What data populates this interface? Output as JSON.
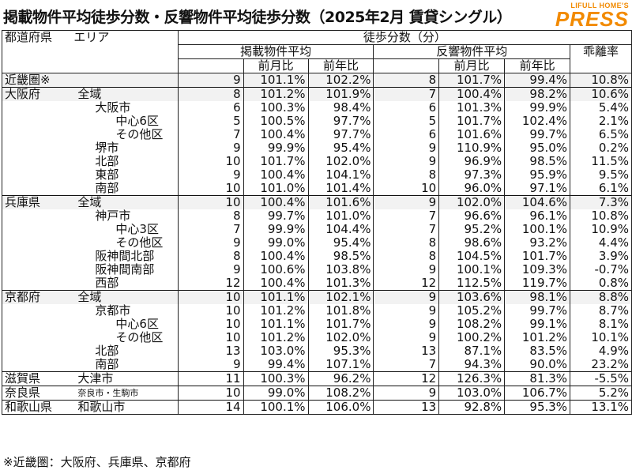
{
  "title": "掲載物件平均徒歩分数・反響物件平均徒歩分数（2025年2月 賃貸シングル）",
  "logo": {
    "top": "LIFULL HOME'S",
    "main": "PRESS",
    "color": "#f28a00"
  },
  "headers": {
    "pref": "都道府県",
    "area": "エリア",
    "walk_minutes": "徒歩分数（分）",
    "listed_avg": "掲載物件平均",
    "response_avg": "反響物件平均",
    "mom": "前月比",
    "yoy": "前年比",
    "divergence": "乖離率"
  },
  "rows": [
    {
      "pref": "近畿圏※",
      "area": "",
      "l": "9",
      "lm": "101.1%",
      "ly": "102.2%",
      "r": "8",
      "rm": "101.7%",
      "ry": "99.4%",
      "d": "10.8%"
    },
    {
      "pref": "大阪府",
      "area": "全域",
      "l": "8",
      "lm": "101.2%",
      "ly": "101.9%",
      "r": "7",
      "rm": "100.4%",
      "ry": "98.2%",
      "d": "10.6%"
    },
    {
      "pref": "",
      "area": "大阪市",
      "l": "6",
      "lm": "100.3%",
      "ly": "98.4%",
      "r": "6",
      "rm": "101.3%",
      "ry": "99.9%",
      "d": "5.4%"
    },
    {
      "pref": "",
      "area": "中心6区",
      "l": "5",
      "lm": "100.5%",
      "ly": "97.7%",
      "r": "5",
      "rm": "101.7%",
      "ry": "102.4%",
      "d": "2.1%"
    },
    {
      "pref": "",
      "area": "その他区",
      "l": "7",
      "lm": "100.4%",
      "ly": "97.7%",
      "r": "6",
      "rm": "101.6%",
      "ry": "99.7%",
      "d": "6.5%"
    },
    {
      "pref": "",
      "area": "堺市",
      "l": "9",
      "lm": "99.9%",
      "ly": "95.4%",
      "r": "9",
      "rm": "110.9%",
      "ry": "95.0%",
      "d": "0.2%"
    },
    {
      "pref": "",
      "area": "北部",
      "l": "10",
      "lm": "101.7%",
      "ly": "102.0%",
      "r": "9",
      "rm": "96.9%",
      "ry": "98.5%",
      "d": "11.5%"
    },
    {
      "pref": "",
      "area": "東部",
      "l": "9",
      "lm": "100.4%",
      "ly": "104.1%",
      "r": "8",
      "rm": "97.3%",
      "ry": "95.9%",
      "d": "9.5%"
    },
    {
      "pref": "",
      "area": "南部",
      "l": "10",
      "lm": "101.0%",
      "ly": "101.4%",
      "r": "10",
      "rm": "96.0%",
      "ry": "97.1%",
      "d": "6.1%"
    },
    {
      "pref": "兵庫県",
      "area": "全域",
      "l": "10",
      "lm": "100.4%",
      "ly": "101.6%",
      "r": "9",
      "rm": "102.0%",
      "ry": "104.6%",
      "d": "7.3%"
    },
    {
      "pref": "",
      "area": "神戸市",
      "l": "8",
      "lm": "99.7%",
      "ly": "101.0%",
      "r": "7",
      "rm": "96.6%",
      "ry": "96.1%",
      "d": "10.8%"
    },
    {
      "pref": "",
      "area": "中心3区",
      "l": "7",
      "lm": "99.9%",
      "ly": "104.4%",
      "r": "7",
      "rm": "95.2%",
      "ry": "100.1%",
      "d": "10.9%"
    },
    {
      "pref": "",
      "area": "その他区",
      "l": "9",
      "lm": "99.0%",
      "ly": "95.4%",
      "r": "8",
      "rm": "98.6%",
      "ry": "93.2%",
      "d": "4.4%"
    },
    {
      "pref": "",
      "area": "阪神間北部",
      "l": "8",
      "lm": "100.4%",
      "ly": "98.5%",
      "r": "8",
      "rm": "104.5%",
      "ry": "101.7%",
      "d": "3.9%"
    },
    {
      "pref": "",
      "area": "阪神間南部",
      "l": "9",
      "lm": "100.6%",
      "ly": "103.8%",
      "r": "9",
      "rm": "100.1%",
      "ry": "109.3%",
      "d": "-0.7%"
    },
    {
      "pref": "",
      "area": "西部",
      "l": "12",
      "lm": "100.4%",
      "ly": "101.3%",
      "r": "12",
      "rm": "112.5%",
      "ry": "119.7%",
      "d": "0.8%"
    },
    {
      "pref": "京都府",
      "area": "全域",
      "l": "10",
      "lm": "101.1%",
      "ly": "102.1%",
      "r": "9",
      "rm": "103.6%",
      "ry": "98.1%",
      "d": "8.8%"
    },
    {
      "pref": "",
      "area": "京都市",
      "l": "10",
      "lm": "101.2%",
      "ly": "101.8%",
      "r": "9",
      "rm": "105.2%",
      "ry": "99.7%",
      "d": "8.7%"
    },
    {
      "pref": "",
      "area": "中心6区",
      "l": "10",
      "lm": "101.1%",
      "ly": "101.7%",
      "r": "9",
      "rm": "108.2%",
      "ry": "99.1%",
      "d": "8.1%"
    },
    {
      "pref": "",
      "area": "その他区",
      "l": "10",
      "lm": "101.2%",
      "ly": "102.0%",
      "r": "9",
      "rm": "100.2%",
      "ry": "101.2%",
      "d": "10.1%"
    },
    {
      "pref": "",
      "area": "北部",
      "l": "13",
      "lm": "103.0%",
      "ly": "95.3%",
      "r": "13",
      "rm": "87.1%",
      "ry": "83.5%",
      "d": "4.9%"
    },
    {
      "pref": "",
      "area": "南部",
      "l": "9",
      "lm": "99.4%",
      "ly": "107.1%",
      "r": "7",
      "rm": "94.3%",
      "ry": "90.0%",
      "d": "23.2%"
    },
    {
      "pref": "滋賀県",
      "area": "大津市",
      "l": "11",
      "lm": "100.3%",
      "ly": "96.2%",
      "r": "12",
      "rm": "126.3%",
      "ry": "81.3%",
      "d": "-5.5%"
    },
    {
      "pref": "奈良県",
      "area": "奈良市・生駒市",
      "l": "10",
      "lm": "99.0%",
      "ly": "108.2%",
      "r": "9",
      "rm": "103.0%",
      "ry": "106.7%",
      "d": "5.2%"
    },
    {
      "pref": "和歌山県",
      "area": "和歌山市",
      "l": "14",
      "lm": "100.1%",
      "ly": "106.0%",
      "r": "13",
      "rm": "92.8%",
      "ry": "95.3%",
      "d": "13.1%"
    }
  ],
  "footnote": "※近畿圏：大阪府、兵庫県、京都府"
}
